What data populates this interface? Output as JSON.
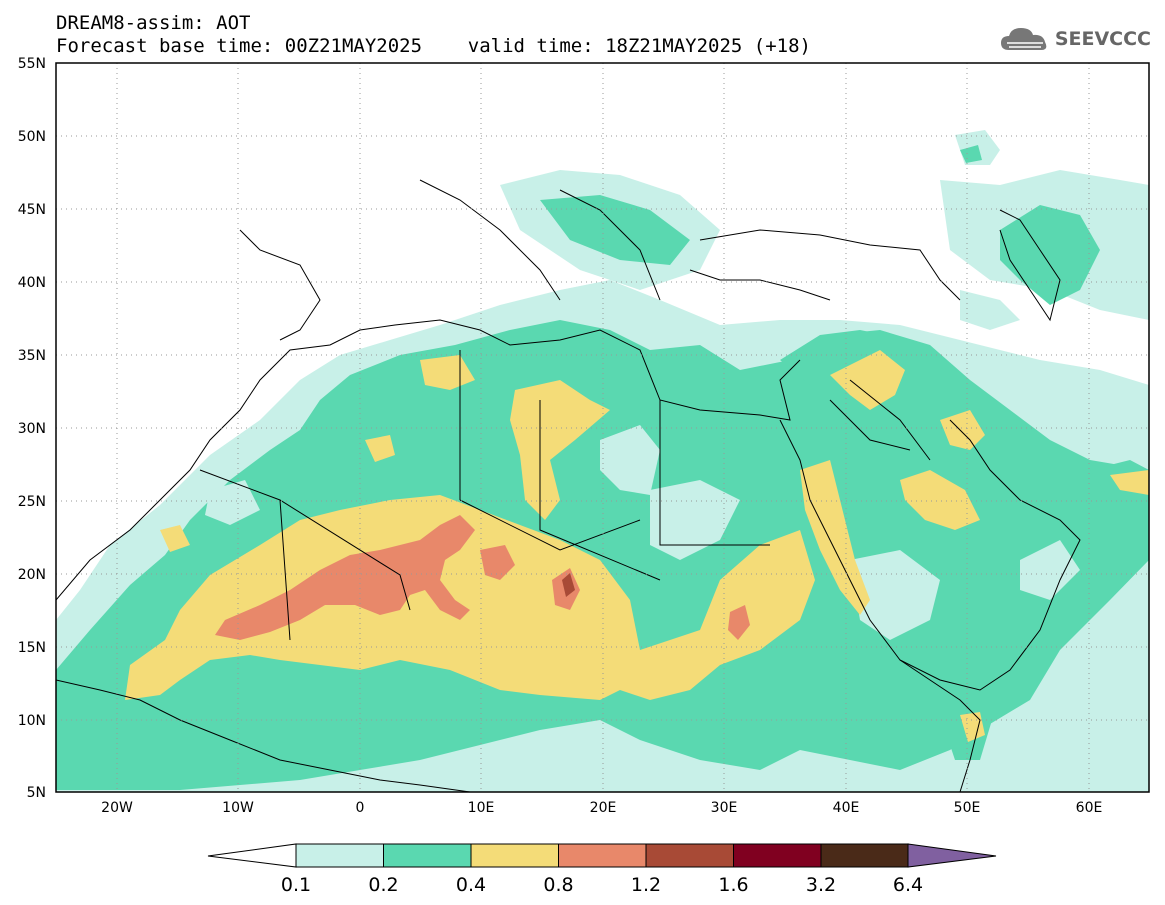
{
  "title": {
    "line1": "DREAM8-assim: AOT",
    "line2": "Forecast base time: 00Z21MAY2025    valid time: 18Z21MAY2025 (+18)"
  },
  "logo": {
    "text": "SEEVCCC",
    "icon": "cloud-icon"
  },
  "map": {
    "lon_range": [
      -25,
      65
    ],
    "lat_range": [
      5,
      55
    ],
    "lat_ticks": [
      "55N",
      "50N",
      "45N",
      "40N",
      "35N",
      "30N",
      "25N",
      "20N",
      "15N",
      "10N",
      "5N"
    ],
    "lon_ticks": [
      "20W",
      "10W",
      "0",
      "10E",
      "20E",
      "30E",
      "40E",
      "50E",
      "60E"
    ],
    "grid": "dotted"
  },
  "legend": {
    "labels": [
      "0.1",
      "0.2",
      "0.4",
      "0.8",
      "1.2",
      "1.6",
      "3.2",
      "6.4"
    ],
    "colors": [
      "#ffffff",
      "#c8f0e8",
      "#5ad8b0",
      "#f4dc78",
      "#e8886a",
      "#a84a36",
      "#800020",
      "#4a2a18",
      "#8060a0"
    ]
  }
}
